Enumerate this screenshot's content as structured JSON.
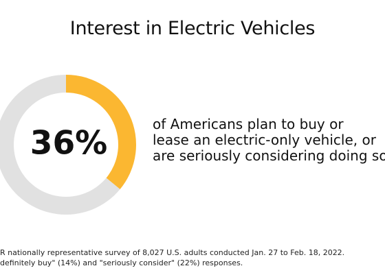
{
  "title": "Interest in Electric Vehicles",
  "chart_data": {
    "type": "pie",
    "donut": true,
    "slices": [
      {
        "value": 36,
        "color": "#FBB731"
      },
      {
        "value": 64,
        "color": "#E1E1E1"
      }
    ],
    "center_label": "36%"
  },
  "description": {
    "line1": "of Americans plan to buy or",
    "line2": "lease an electric-only vehicle, or",
    "line3": "are seriously considering doing so"
  },
  "footnote": {
    "line1": "R nationally representative survey of 8,027 U.S. adults conducted Jan. 27 to Feb. 18, 2022.",
    "line2": "definitely buy\" (14%) and \"seriously consider\" (22%) responses."
  }
}
